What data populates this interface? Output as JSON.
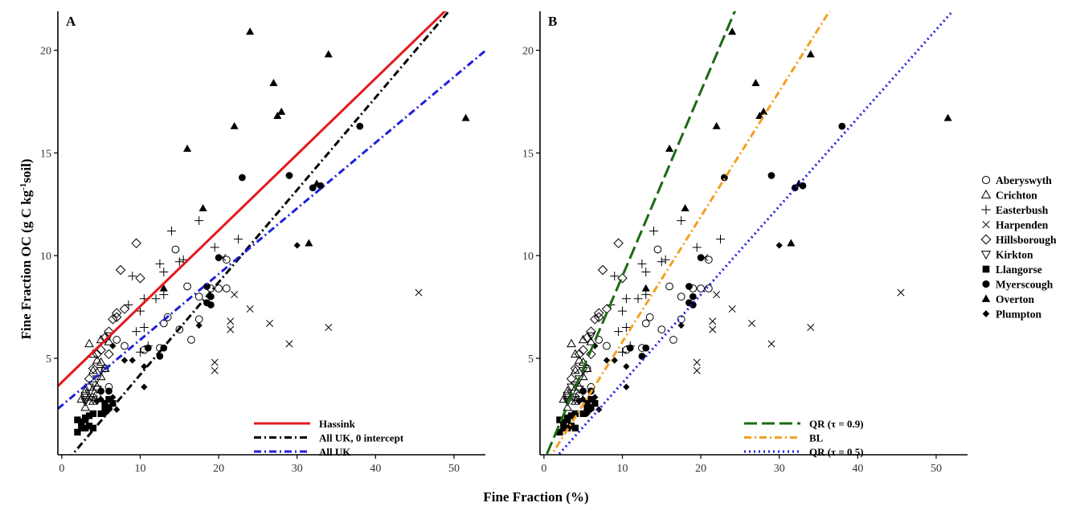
{
  "figure": {
    "ylabel": "Fine Fraction OC (g C kg-1soil)",
    "ylabel_main": "Fine Fraction OC (g C kg",
    "ylabel_sup": "-1",
    "ylabel_tail": "soil)",
    "xlabel": "Fine Fraction (%)"
  },
  "colors": {
    "hassink": "#e41a1c",
    "all_uk_zero": "#000000",
    "all_uk": "#1f1fdd",
    "qr09": "#1a6b12",
    "bl": "#f5a020",
    "qr05": "#1a1ae6"
  },
  "sites": [
    {
      "name": "Aberyswyth",
      "marker": "circle-open"
    },
    {
      "name": "Crichton",
      "marker": "triangle-open"
    },
    {
      "name": "Easterbush",
      "marker": "plus"
    },
    {
      "name": "Harpenden",
      "marker": "cross"
    },
    {
      "name": "Hillsborough",
      "marker": "diamond-open"
    },
    {
      "name": "Kirkton",
      "marker": "triangle-down-open"
    },
    {
      "name": "Llangorse",
      "marker": "square-filled"
    },
    {
      "name": "Myerscough",
      "marker": "circle-filled"
    },
    {
      "name": "Overton",
      "marker": "triangle-filled"
    },
    {
      "name": "Plumpton",
      "marker": "diamond-filled"
    }
  ],
  "chart_data": [
    {
      "type": "scatter",
      "panel_label": "A",
      "xlabel": "Fine Fraction (%)",
      "ylabel": "Fine Fraction OC (g C kg-1soil)",
      "xlim": [
        -0.5,
        54
      ],
      "ylim": [
        0.3,
        21.9
      ],
      "x_ticks": [
        0,
        10,
        20,
        30,
        40,
        50
      ],
      "y_ticks": [
        5,
        10,
        15,
        20
      ],
      "grid": false,
      "legend_position": "bottom-right",
      "lines": [
        {
          "name": "Hassink",
          "style": "solid",
          "color_key": "hassink",
          "intercept": 3.83,
          "slope": 0.37
        },
        {
          "name": "All UK, 0 intercept",
          "style": "dashdot",
          "color_key": "all_uk_zero",
          "intercept": -0.3,
          "slope": 0.45
        },
        {
          "name": "All UK",
          "style": "dashdot",
          "color_key": "all_uk",
          "intercept": 2.7,
          "slope": 0.32
        }
      ]
    },
    {
      "type": "scatter",
      "panel_label": "B",
      "xlabel": "Fine Fraction (%)",
      "ylabel": "",
      "xlim": [
        -0.5,
        54
      ],
      "ylim": [
        0.3,
        21.9
      ],
      "x_ticks": [
        0,
        10,
        20,
        30,
        40,
        50
      ],
      "y_ticks": [
        5,
        10,
        15,
        20
      ],
      "grid": false,
      "legend_position": "bottom-right",
      "lines": [
        {
          "name": "QR (τ = 0.9)",
          "style": "longdash",
          "color_key": "qr09",
          "intercept": 0,
          "slope": 0.9
        },
        {
          "name": "BL",
          "style": "dashdot",
          "color_key": "bl",
          "intercept": -0.3,
          "slope": 0.61
        },
        {
          "name": "QR (τ = 0.5)",
          "style": "dotted",
          "color_key": "qr05",
          "intercept": -0.5,
          "slope": 0.43
        }
      ]
    }
  ],
  "points": {
    "Aberyswyth": [
      [
        5.5,
        4.5
      ],
      [
        8,
        5.6
      ],
      [
        10.5,
        5.4
      ],
      [
        12.5,
        5.5
      ],
      [
        13,
        6.7
      ],
      [
        13.5,
        7
      ],
      [
        14.5,
        10.3
      ],
      [
        15,
        6.4
      ],
      [
        16,
        8.5
      ],
      [
        16.5,
        5.9
      ],
      [
        17.5,
        6.9
      ],
      [
        17.5,
        8
      ],
      [
        19,
        8.4
      ],
      [
        20,
        8.4
      ],
      [
        21,
        8.4
      ],
      [
        21,
        9.8
      ],
      [
        4,
        3.1
      ],
      [
        4.5,
        3.2
      ],
      [
        6,
        3.6
      ],
      [
        7,
        5.9
      ]
    ],
    "Crichton": [
      [
        3.5,
        5.7
      ],
      [
        4,
        5.2
      ],
      [
        4.5,
        4.9
      ],
      [
        5,
        5.9
      ],
      [
        4,
        4.4
      ],
      [
        5,
        4.1
      ],
      [
        3,
        3.4
      ],
      [
        3.5,
        3.1
      ],
      [
        2.5,
        3.0
      ],
      [
        4,
        2.9
      ],
      [
        4.5,
        3.6
      ],
      [
        5,
        4.8
      ],
      [
        6,
        5.8
      ],
      [
        5.5,
        4.5
      ],
      [
        3,
        2.6
      ]
    ],
    "Easterbush": [
      [
        17.5,
        11.7
      ],
      [
        14,
        11.2
      ],
      [
        12.5,
        9.6
      ],
      [
        13,
        9.2
      ],
      [
        15,
        9.7
      ],
      [
        15.5,
        9.8
      ],
      [
        19.5,
        10.4
      ],
      [
        22.5,
        10.8
      ],
      [
        10,
        7.3
      ],
      [
        10.5,
        7.9
      ],
      [
        12,
        7.9
      ],
      [
        13,
        8.1
      ],
      [
        9.5,
        6.3
      ],
      [
        10.5,
        6.5
      ],
      [
        8.5,
        7.6
      ],
      [
        9,
        9.0
      ],
      [
        11,
        5.6
      ],
      [
        10,
        5.3
      ]
    ],
    "Harpenden": [
      [
        19.5,
        4.4
      ],
      [
        19.5,
        4.8
      ],
      [
        21.5,
        6.4
      ],
      [
        21.5,
        6.8
      ],
      [
        22,
        8.1
      ],
      [
        24,
        7.4
      ],
      [
        26.5,
        6.7
      ],
      [
        29,
        5.7
      ],
      [
        34,
        6.5
      ],
      [
        45.5,
        8.2
      ],
      [
        20.5,
        9.9
      ]
    ],
    "Hillsborough": [
      [
        9.5,
        10.6
      ],
      [
        7.5,
        9.3
      ],
      [
        10,
        8.9
      ],
      [
        8,
        7.4
      ],
      [
        7,
        7.2
      ],
      [
        6.5,
        6.9
      ],
      [
        6,
        6.3
      ],
      [
        5.5,
        6.0
      ],
      [
        5,
        5.4
      ],
      [
        4.5,
        5.2
      ],
      [
        4,
        4.5
      ],
      [
        3.5,
        4.0
      ],
      [
        6,
        5.2
      ],
      [
        7,
        7.0
      ]
    ],
    "Kirkton": [
      [
        3,
        3.2
      ],
      [
        3.5,
        3.3
      ],
      [
        4,
        3.0
      ],
      [
        4.5,
        3.5
      ],
      [
        3,
        2.9
      ],
      [
        4,
        3.7
      ],
      [
        5,
        4.4
      ],
      [
        4.5,
        4.0
      ],
      [
        3.5,
        3.6
      ],
      [
        6,
        6.1
      ],
      [
        3,
        3.0
      ]
    ],
    "Llangorse": [
      [
        2,
        1.4
      ],
      [
        2.5,
        1.6
      ],
      [
        3,
        1.6
      ],
      [
        3.5,
        1.7
      ],
      [
        2,
        2.0
      ],
      [
        2.5,
        1.9
      ],
      [
        3,
        2.1
      ],
      [
        3.5,
        2.2
      ],
      [
        4,
        2.3
      ],
      [
        5,
        2.3
      ],
      [
        5.5,
        2.5
      ],
      [
        6,
        2.6
      ],
      [
        6.5,
        2.8
      ],
      [
        6,
        3.0
      ],
      [
        5.5,
        2.8
      ],
      [
        4,
        1.6
      ],
      [
        3,
        2.0
      ]
    ],
    "Myerscough": [
      [
        38,
        16.3
      ],
      [
        23,
        13.8
      ],
      [
        29,
        13.9
      ],
      [
        32,
        13.3
      ],
      [
        33,
        13.4
      ],
      [
        20,
        9.9
      ],
      [
        18.5,
        8.5
      ],
      [
        19,
        8.0
      ],
      [
        18.5,
        7.7
      ],
      [
        11,
        5.5
      ],
      [
        13,
        5.5
      ],
      [
        12.5,
        5.1
      ],
      [
        6,
        3.4
      ],
      [
        5,
        3.4
      ],
      [
        19,
        7.6
      ]
    ],
    "Overton": [
      [
        24,
        20.9
      ],
      [
        34,
        19.8
      ],
      [
        27,
        18.4
      ],
      [
        28,
        17.0
      ],
      [
        27.5,
        16.8
      ],
      [
        51.5,
        16.7
      ],
      [
        22,
        16.3
      ],
      [
        16,
        15.2
      ],
      [
        18,
        12.3
      ],
      [
        32.5,
        13.5
      ],
      [
        31.5,
        10.6
      ],
      [
        13,
        8.4
      ]
    ],
    "Plumpton": [
      [
        30,
        10.5
      ],
      [
        17.5,
        6.6
      ],
      [
        10.5,
        4.6
      ],
      [
        10.5,
        3.6
      ],
      [
        8,
        4.9
      ],
      [
        9,
        4.9
      ],
      [
        6.5,
        5.6
      ],
      [
        4.5,
        2.9
      ],
      [
        5,
        3.0
      ],
      [
        6.5,
        3.1
      ],
      [
        5.5,
        2.3
      ],
      [
        7,
        2.5
      ],
      [
        6,
        2.5
      ]
    ]
  }
}
